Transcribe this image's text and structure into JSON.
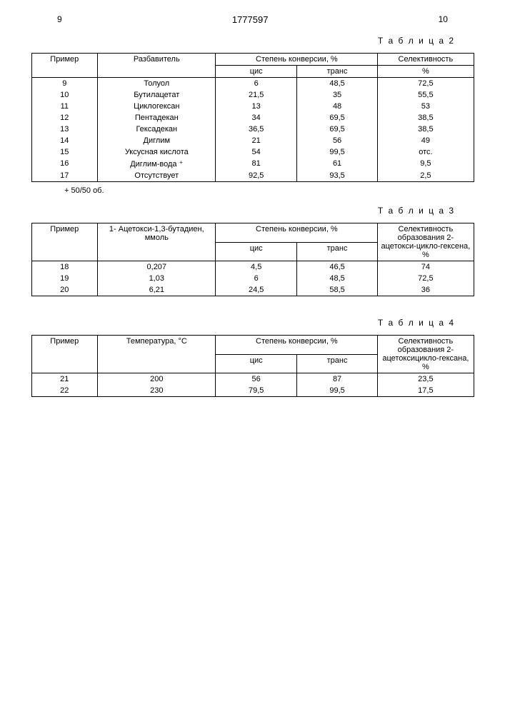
{
  "header": {
    "page_left": "9",
    "doc_number": "1777597",
    "page_right": "10"
  },
  "table2": {
    "label": "Т а б л и ц а 2",
    "h_primer": "Пример",
    "h_razb": "Разбавитель",
    "h_conv": "Степень конверсии, %",
    "h_cis": "цис",
    "h_trans": "транс",
    "h_sel": "Селективность",
    "h_pct": "%",
    "rows": [
      {
        "n": "9",
        "d": "Толуол",
        "c": "6",
        "t": "48,5",
        "s": "72,5"
      },
      {
        "n": "10",
        "d": "Бутилацетат",
        "c": "21,5",
        "t": "35",
        "s": "55,5"
      },
      {
        "n": "11",
        "d": "Циклогексан",
        "c": "13",
        "t": "48",
        "s": "53"
      },
      {
        "n": "12",
        "d": "Пентадекан",
        "c": "34",
        "t": "69,5",
        "s": "38,5"
      },
      {
        "n": "13",
        "d": "Гексадекан",
        "c": "36,5",
        "t": "69,5",
        "s": "38,5"
      },
      {
        "n": "14",
        "d": "Диглим",
        "c": "21",
        "t": "56",
        "s": "49"
      },
      {
        "n": "15",
        "d": "Уксусная кислота",
        "c": "54",
        "t": "99,5",
        "s": "отс."
      },
      {
        "n": "16",
        "d": "Диглим-вода ⁺",
        "c": "81",
        "t": "61",
        "s": "9,5"
      },
      {
        "n": "17",
        "d": "Отсутствует",
        "c": "92,5",
        "t": "93,5",
        "s": "2,5"
      }
    ],
    "footnote": "+ 50/50 об."
  },
  "table3": {
    "label": "Т а б л и ц а 3",
    "h_primer": "Пример",
    "h_col2": "1- Ацетокси-1,3-бутадиен, ммоль",
    "h_conv": "Степень конверсии, %",
    "h_cis": "цис",
    "h_trans": "транс",
    "h_sel": "Селективность образования 2-ацетокси-цикло-гексена, %",
    "rows": [
      {
        "n": "18",
        "v": "0,207",
        "c": "4,5",
        "t": "46,5",
        "s": "74"
      },
      {
        "n": "19",
        "v": "1,03",
        "c": "6",
        "t": "48,5",
        "s": "72,5"
      },
      {
        "n": "20",
        "v": "6,21",
        "c": "24,5",
        "t": "58,5",
        "s": "36"
      }
    ]
  },
  "table4": {
    "label": "Т а б л и ц а 4",
    "h_primer": "Пример",
    "h_col2": "Температура, °С",
    "h_conv": "Степень конверсии, %",
    "h_cis": "цис",
    "h_trans": "транс",
    "h_sel": "Селективность образования 2-ацетоксицикло-гексана, %",
    "rows": [
      {
        "n": "21",
        "v": "200",
        "c": "56",
        "t": "87",
        "s": "23,5"
      },
      {
        "n": "22",
        "v": "230",
        "c": "79,5",
        "t": "99,5",
        "s": "17,5"
      }
    ]
  }
}
